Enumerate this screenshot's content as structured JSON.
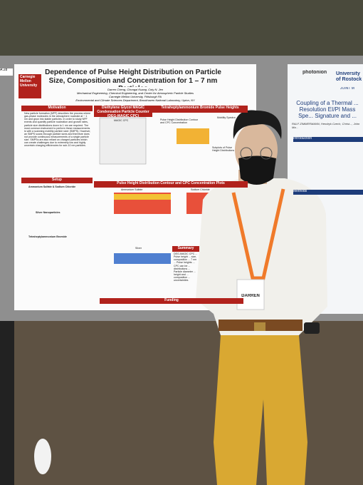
{
  "poster": {
    "board_id": "A.28",
    "logo": "Carnegie Mellon University",
    "title": "Dependence of Pulse Height Distribution on Particle Size, Composition and Concentration for 1 – 7 nm Particles",
    "authors": "Darren Cheng, Chongai Kuang, Coty N. Jen",
    "affiliations": [
      "Mechanical Engineering, Chemical Engineering, and Center for Atmospheric Particle Studies",
      "Carnegie Mellon University, Pittsburgh PA",
      "Environmental and Climate Sciences Department, Brookhaven National Laboratory, Upton, NY"
    ],
    "sections": {
      "motivation": {
        "heading": "Motivation",
        "text": "New particle formation (NPF) describes the process where gas-phase molecules in the atmosphere nucleate at ~ 1 nm and grow into stable particles. In order to study NPF events and quantify particle nucleation and growth rates, particle size distributions down to 1 nm are required. The most common instrument to perform these measurements is with a scanning mobility particle sizer (SMPS). However, an SMPS scans through particle sizes and therefore does not provide continuous measurements of a single particle size. SMPSs are also reliant on charged particles which can create challenges due to extremely low and highly uncertain charging efficiencies for sub-10 nm particles."
      },
      "setup": {
        "heading": "Setup",
        "subheadings": [
          "Ammonium Sulfate & Sodium Chloride",
          "Silver Nanoparticles",
          "Tetraheptylammonium Bromide"
        ]
      },
      "cpc": {
        "heading": "Diethylene Glycol MAGIC Condensation Particle Counter (DEG-MAGIC CPC)",
        "label": "MAGIC CPC"
      },
      "thab": {
        "heading": "Tetraheptylammonium Bromide Pulse Heights",
        "plot_titles": [
          "Pulse Height Distribution Contour and CPC Concentration",
          "Mobility Spectra",
          "Subplots of Pulse Height Distributions"
        ]
      },
      "contour": {
        "heading": "Pulse Height Distribution Contour and CPC Concentration Plots",
        "panels": [
          "Ammonium Sulfate",
          "Sodium Chloride",
          "Silver"
        ]
      },
      "summary": {
        "heading": "Summary",
        "text": "DEG-MAGIC CPC ... Pulse height ... size, composition ... 7 nm ... Pulse heights ... CPC can be ... distributions ... Particle diameter ... height and ... composition ... uncertainties"
      },
      "funding": {
        "heading": "Funding"
      }
    }
  },
  "right_poster": {
    "logos": [
      "photonion",
      "University of Rostock",
      "JOINT M"
    ],
    "title": "Coupling of a Thermal ... Resolution EI/PI Mass Spe... Signature and ...",
    "authors": "RALF ZIMMERMANN, Hendryk Czech, Christ..., John Ma...",
    "sections": [
      "Introduction",
      "Methods"
    ]
  },
  "badge": {
    "name": "DARREN"
  }
}
